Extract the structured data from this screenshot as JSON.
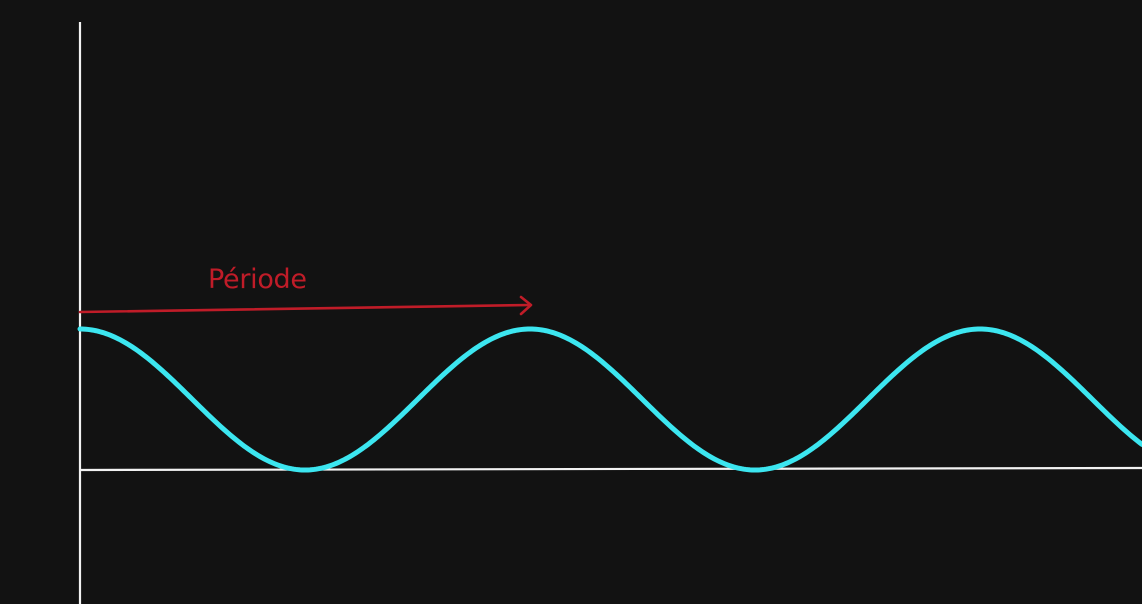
{
  "diagram": {
    "background_color": "#121212",
    "axis_color": "#f2f2f2",
    "wave": {
      "color": "#3ce6f0",
      "shape": "cosine",
      "cycles_shown": 2.37
    },
    "period_annotation": {
      "label": "Période",
      "color": "#c01c28",
      "spans_cycles": 1
    }
  }
}
